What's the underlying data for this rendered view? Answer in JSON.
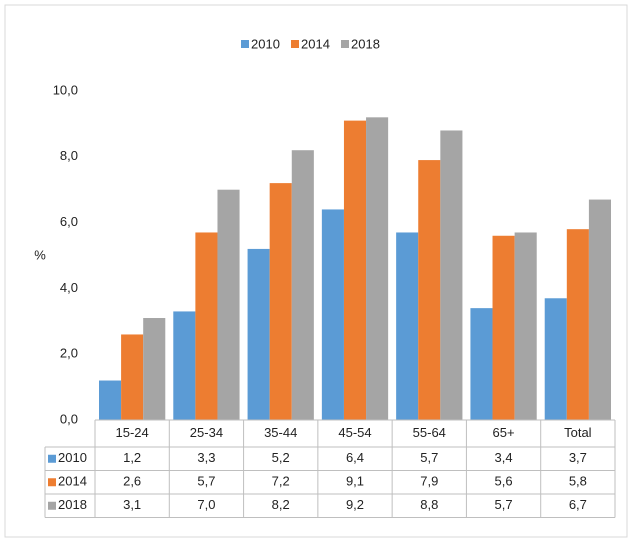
{
  "chart_data": {
    "type": "bar",
    "y_label": "%",
    "categories": [
      "15-24",
      "25-34",
      "35-44",
      "45-54",
      "55-64",
      "65+",
      "Total"
    ],
    "series": [
      {
        "name": "2010",
        "color": "#5b9bd5",
        "values": [
          1.2,
          3.3,
          5.2,
          6.4,
          5.7,
          3.4,
          3.7
        ],
        "value_labels": [
          "1,2",
          "3,3",
          "5,2",
          "6,4",
          "5,7",
          "3,4",
          "3,7"
        ]
      },
      {
        "name": "2014",
        "color": "#ed7d31",
        "values": [
          2.6,
          5.7,
          7.2,
          9.1,
          7.9,
          5.6,
          5.8
        ],
        "value_labels": [
          "2,6",
          "5,7",
          "7,2",
          "9,1",
          "7,9",
          "5,6",
          "5,8"
        ]
      },
      {
        "name": "2018",
        "color": "#a5a5a5",
        "values": [
          3.1,
          7.0,
          8.2,
          9.2,
          8.8,
          5.7,
          6.7
        ],
        "value_labels": [
          "3,1",
          "7,0",
          "8,2",
          "9,2",
          "8,8",
          "5,7",
          "6,7"
        ]
      }
    ],
    "ylim": [
      0,
      10
    ],
    "yticks": [
      {
        "value": 0,
        "label": "0,0"
      },
      {
        "value": 2,
        "label": "2,0"
      },
      {
        "value": 4,
        "label": "4,0"
      },
      {
        "value": 6,
        "label": "6,0"
      },
      {
        "value": 8,
        "label": "8,0"
      },
      {
        "value": 10,
        "label": "10,0"
      }
    ],
    "legend": "top",
    "grid": false
  }
}
